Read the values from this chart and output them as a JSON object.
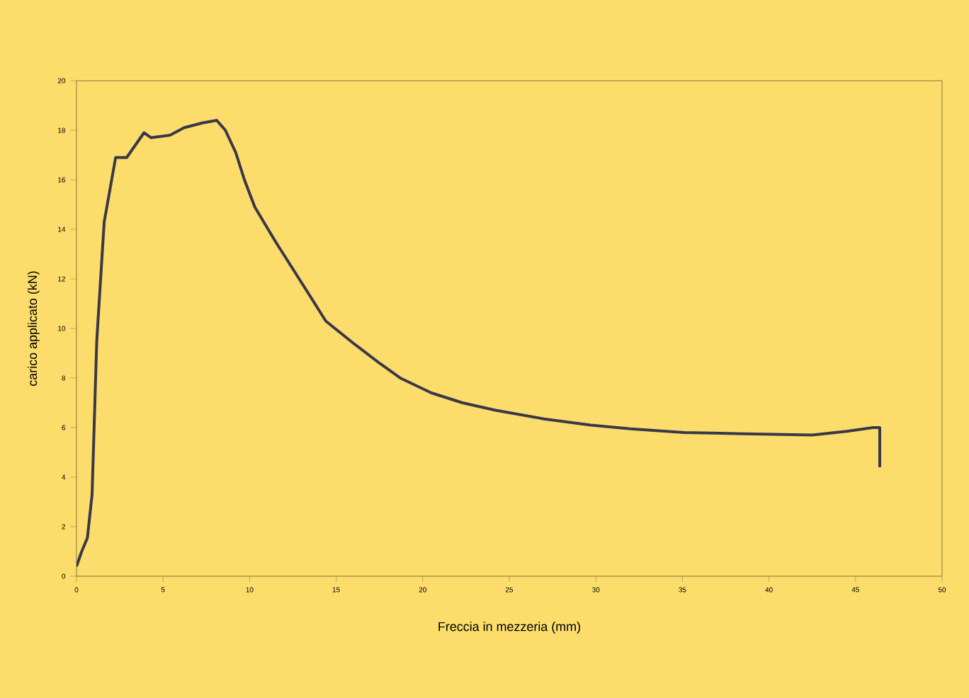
{
  "chart_data": {
    "type": "line",
    "xlabel": "Freccia in mezzeria (mm)",
    "ylabel": "carico applicato (kN)",
    "xlim": [
      0,
      50
    ],
    "ylim": [
      0,
      20
    ],
    "xticks": [
      0,
      5,
      10,
      15,
      20,
      25,
      30,
      35,
      40,
      45,
      50
    ],
    "yticks": [
      0,
      2,
      4,
      6,
      8,
      10,
      12,
      14,
      16,
      18,
      20
    ],
    "grid": false,
    "marker": "none",
    "line_style": "solid",
    "series": [
      {
        "color": "#3a3848",
        "x": [
          0,
          0.3,
          0.63,
          0.9,
          1.17,
          1.6,
          2.26,
          2.9,
          3.9,
          4.3,
          5.4,
          6.2,
          7.3,
          8.1,
          8.6,
          9.2,
          9.7,
          10.3,
          11.5,
          12.5,
          13.5,
          14.4,
          16.0,
          17.5,
          18.7,
          20.5,
          22.3,
          24.2,
          27.0,
          29.7,
          32.0,
          35.1,
          38.5,
          42.5,
          44.5,
          46.0,
          46.4,
          46.4
        ],
        "values": [
          0.4,
          1.0,
          1.55,
          3.3,
          9.5,
          14.3,
          16.9,
          16.9,
          17.9,
          17.7,
          17.8,
          18.1,
          18.3,
          18.4,
          18.0,
          17.1,
          16.0,
          14.9,
          13.5,
          12.4,
          11.3,
          10.3,
          9.4,
          8.6,
          8.0,
          7.4,
          7.0,
          6.7,
          6.35,
          6.1,
          5.95,
          5.8,
          5.75,
          5.7,
          5.85,
          6.0,
          6.0,
          4.4
        ]
      }
    ]
  }
}
